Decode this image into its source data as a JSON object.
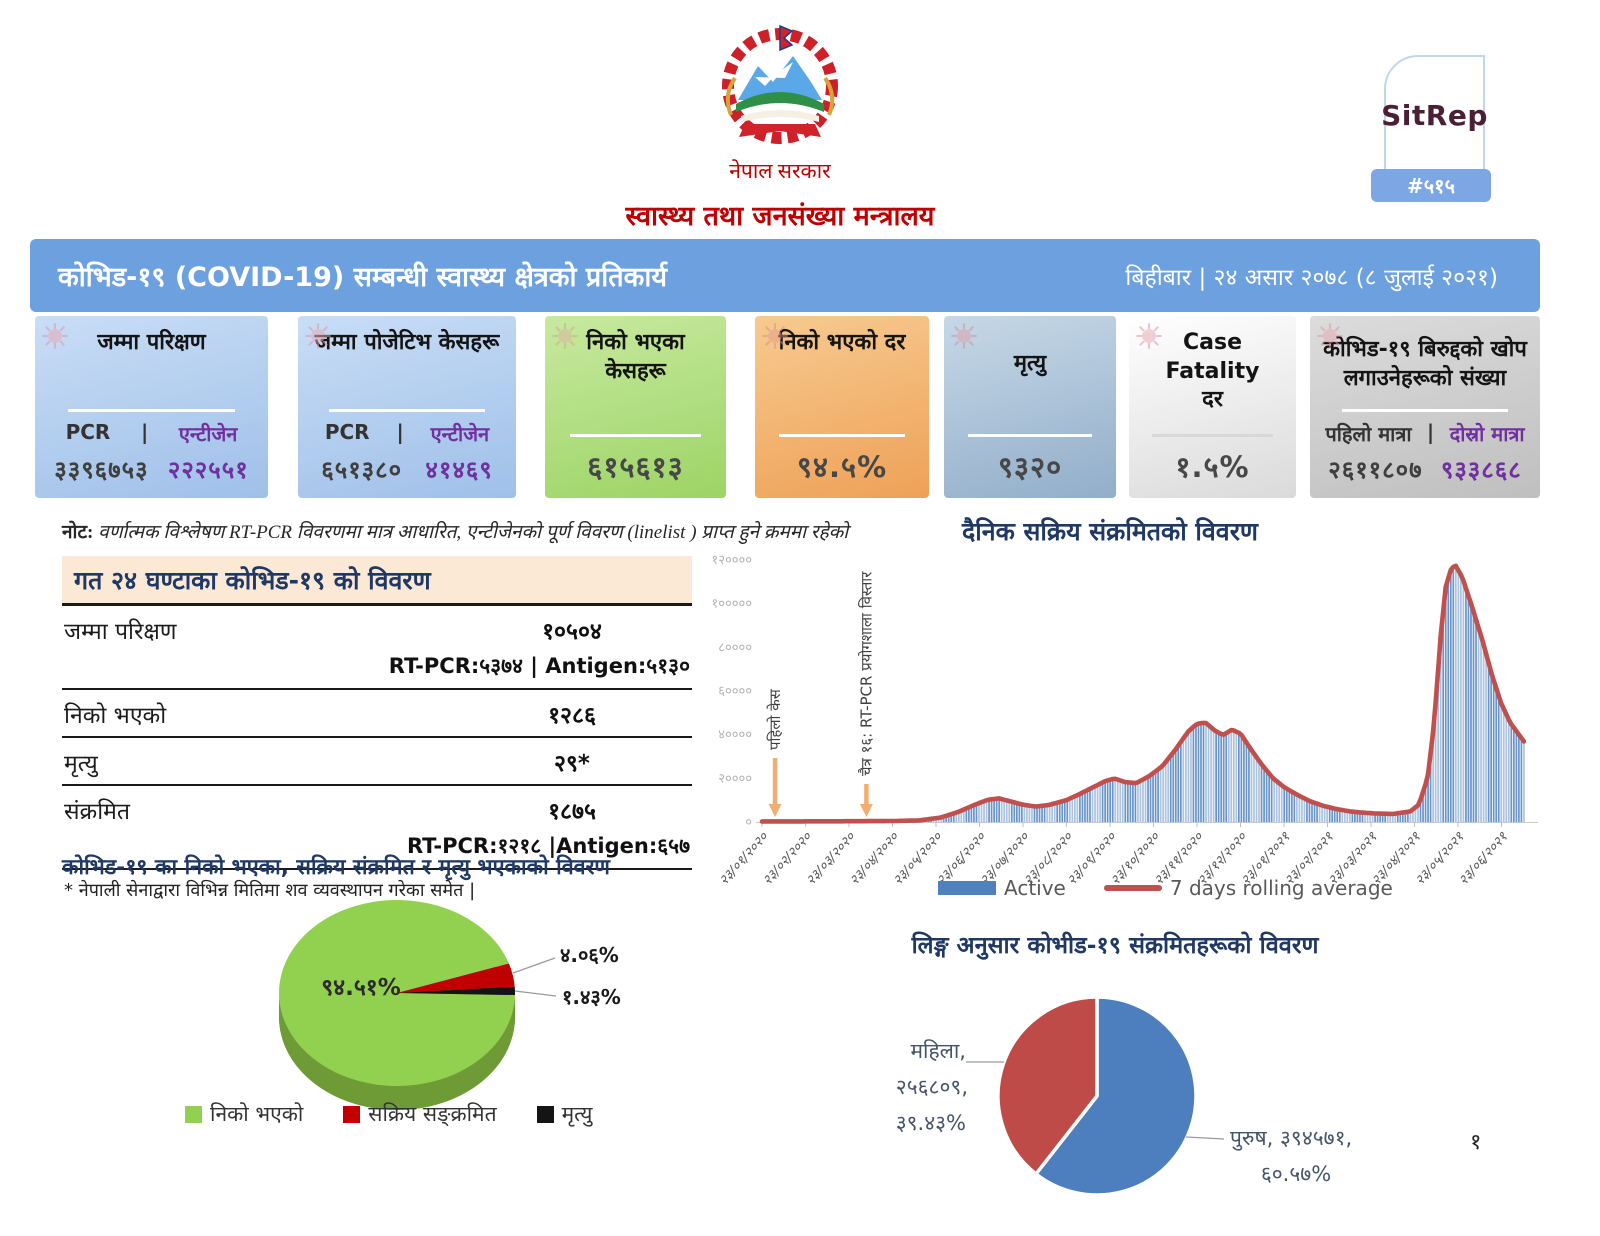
{
  "divider": "|",
  "header": {
    "government": "नेपाल सरकार",
    "ministry": "स्वास्थ्य तथा जनसंख्या मन्त्रालय",
    "sitrep_label": "SitRep",
    "sitrep_number": "#५१५",
    "title": "कोभिड-१९  (COVID-19) सम्बन्धी स्वास्थ्य क्षेत्रको प्रतिकार्य",
    "date": "बिहीबार | २४ असार २०७८ (८ जुलाई  २०२१)"
  },
  "cards": [
    {
      "title": "जम्मा परिक्षण",
      "label1": "PCR",
      "label2": "एन्टीजेन",
      "value1": "३३९६७५३",
      "value2": "२२२५५१"
    },
    {
      "title": "जम्मा पोजेटिभ केसहरू",
      "label1": "PCR",
      "label2": "एन्टीजेन",
      "value1": "६५१३८०",
      "value2": "४१४६९"
    },
    {
      "title": "निको भएका केसहरू",
      "value": "६१५६१३"
    },
    {
      "title": "निको भएको दर",
      "value": "९४.५%"
    },
    {
      "title": "मृत्यु",
      "value": "९३२०"
    },
    {
      "title": "Case Fatality दर",
      "value": "१.५%"
    },
    {
      "title": "कोभिड-१९ बिरुद्दको खोप लगाउनेहरूको संख्या",
      "label1": "पहिलो मात्रा",
      "label2": "दोस्रो मात्रा",
      "value1": "२६११८०७",
      "value2": "९३३८६८"
    }
  ],
  "note": {
    "prefix": "नोट:",
    "text": "वर्णात्मक विश्लेषण RT-PCR विवरणमा मात्र आधारित, एन्टीजेनको पूर्ण विवरण (linelist ) प्राप्त हुने क्रममा रहेको"
  },
  "summary_table": {
    "title": "गत २४ घण्टाका कोभिड-१९ को विवरण",
    "rows": [
      {
        "label": "जम्मा परिक्षण",
        "value": "१०५०४",
        "sub": "RT-PCR:५३७४ | Antigen:५१३०"
      },
      {
        "label": "निको भएको",
        "value": "१२८६"
      },
      {
        "label": "मृत्यु",
        "value": "२९*"
      },
      {
        "label": "संक्रमित",
        "value": "१८७५",
        "sub": "RT-PCR:१२१८ |Antigen:६५७"
      }
    ],
    "footnote": "* नेपाली सेनाद्वारा विभिन्न मितिमा शव व्यवस्थापन गरेका समेत  |"
  },
  "page_number": "१",
  "chart_data": [
    {
      "type": "bar",
      "title": "दैनिक सक्रिय संक्रमितको विवरण",
      "x_labels": [
        "२३/०१/२०२०",
        "२३/०२/२०२०",
        "२३/०३/२०२०",
        "२३/०४/२०२०",
        "२३/०५/२०२०",
        "२३/०६/२०२०",
        "२३/०७/२०२०",
        "२३/०८/२०२०",
        "२३/०९/२०२०",
        "२३/१०/२०२०",
        "२३/११/२०२०",
        "२३/१२/२०२०",
        "२३/०१/२०२१",
        "२३/०२/२०२१",
        "२३/०३/२०२१",
        "२३/०४/२०२१",
        "२३/०५/२०२१",
        "२३/०६/२०२१"
      ],
      "ylim": [
        0,
        120000
      ],
      "y_ticks": [
        0,
        20000,
        40000,
        60000,
        80000,
        100000,
        120000
      ],
      "y_tick_labels": [
        "०",
        "२००००",
        "४००००",
        "६००००",
        "८००००",
        "१०००००",
        "१२००००"
      ],
      "grid": false,
      "legend_position": "bottom",
      "series": [
        {
          "name": "Active",
          "type": "bar",
          "color": "#4F81BD"
        },
        {
          "name": "7 days rolling average",
          "type": "line",
          "color": "#C0504D"
        }
      ],
      "annotations": [
        {
          "label": "पहिलो केस",
          "month": 0.3
        },
        {
          "label": "चैत्र १६: RT-PCR प्रयोगशाला विस्तार",
          "month": 2.4
        }
      ],
      "end_month": 17.55,
      "points": [
        [
          0,
          250
        ],
        [
          1,
          300
        ],
        [
          2,
          350
        ],
        [
          3,
          450
        ],
        [
          3.6,
          700
        ],
        [
          4.1,
          2000
        ],
        [
          4.5,
          4500
        ],
        [
          4.9,
          8000
        ],
        [
          5.2,
          10200
        ],
        [
          5.45,
          10800
        ],
        [
          5.7,
          9500
        ],
        [
          6,
          7900
        ],
        [
          6.3,
          7100
        ],
        [
          6.6,
          7800
        ],
        [
          7,
          10000
        ],
        [
          7.3,
          12800
        ],
        [
          7.6,
          15800
        ],
        [
          7.9,
          18800
        ],
        [
          8.1,
          19900
        ],
        [
          8.35,
          18300
        ],
        [
          8.6,
          17800
        ],
        [
          8.9,
          21000
        ],
        [
          9.2,
          25500
        ],
        [
          9.5,
          33000
        ],
        [
          9.8,
          41500
        ],
        [
          10,
          45000
        ],
        [
          10.2,
          45500
        ],
        [
          10.4,
          42000
        ],
        [
          10.6,
          39800
        ],
        [
          10.8,
          42300
        ],
        [
          11,
          40500
        ],
        [
          11.25,
          33000
        ],
        [
          11.5,
          26000
        ],
        [
          11.75,
          20000
        ],
        [
          12,
          16000
        ],
        [
          12.3,
          12500
        ],
        [
          12.6,
          9500
        ],
        [
          12.9,
          7400
        ],
        [
          13.2,
          6000
        ],
        [
          13.5,
          4900
        ],
        [
          13.8,
          4300
        ],
        [
          14.1,
          3900
        ],
        [
          14.5,
          3700
        ],
        [
          14.9,
          4800
        ],
        [
          15.1,
          8000
        ],
        [
          15.3,
          20000
        ],
        [
          15.45,
          45000
        ],
        [
          15.6,
          85000
        ],
        [
          15.72,
          108000
        ],
        [
          15.85,
          116500
        ],
        [
          15.95,
          117300
        ],
        [
          16.1,
          112000
        ],
        [
          16.3,
          100000
        ],
        [
          16.55,
          84000
        ],
        [
          16.8,
          66000
        ],
        [
          17,
          54000
        ],
        [
          17.2,
          45500
        ],
        [
          17.4,
          40000
        ],
        [
          17.55,
          36000
        ]
      ]
    },
    {
      "type": "pie",
      "variant": "3d",
      "title": "कोभिड-१९ का निको भएका, सक्रिय संक्रमित र मृत्यु भएकाको विवरण",
      "legend_position": "bottom",
      "slices": [
        {
          "label": "निको भएको",
          "pct": 94.51,
          "display": "९४.५१%",
          "color": "#92D050"
        },
        {
          "label": "सक्रिय सङ्क्रमित",
          "pct": 4.06,
          "display": "४.०६%",
          "color": "#C00000"
        },
        {
          "label": "मृत्यु",
          "pct": 1.43,
          "display": "१.४३%",
          "color": "#141414"
        }
      ]
    },
    {
      "type": "pie",
      "title": "लिङ्ग अनुसार कोभीड-१९ संक्रमितहरूको विवरण",
      "slices": [
        {
          "label": "पुरुष",
          "value": 394571,
          "pct": 60.57,
          "display_line1": "पुरुष, ३९४५७१,",
          "display_line2": "६०.५७%",
          "color": "#4D7EBE"
        },
        {
          "label": "महिला",
          "value": 256809,
          "pct": 39.43,
          "display_line1": "महिला,",
          "display_line2": "२५६८०९,",
          "display_line3": "३९.४३%",
          "color": "#BE4B48"
        }
      ]
    }
  ]
}
